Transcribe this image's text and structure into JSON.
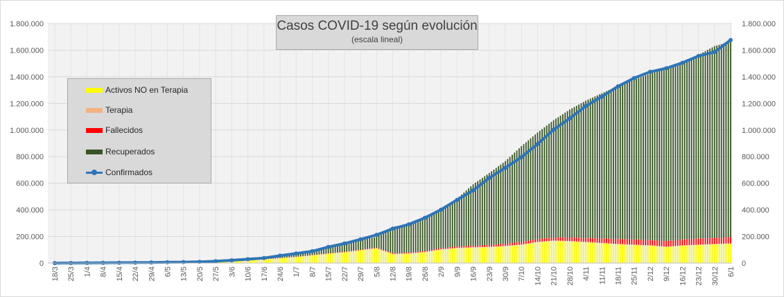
{
  "chart_data": {
    "type": "area",
    "title": "Casos COVID-19 según evolución",
    "subtitle": "(escala lineal)",
    "y_ticks": [
      "1.800.000",
      "1.600.000",
      "1.400.000",
      "1.200.000",
      "1.000.000",
      "800.000",
      "600.000",
      "400.000",
      "200.000",
      "0"
    ],
    "ylim": [
      0,
      1800000
    ],
    "grid": true,
    "legend_position": "left",
    "x_dates": [
      "18/3",
      "25/3",
      "1/4",
      "8/4",
      "15/4",
      "22/4",
      "29/4",
      "6/5",
      "13/5",
      "20/5",
      "27/5",
      "3/6",
      "10/6",
      "17/6",
      "24/6",
      "1/7",
      "8/7",
      "15/7",
      "22/7",
      "29/7",
      "5/8",
      "12/8",
      "19/8",
      "26/8",
      "2/9",
      "9/9",
      "16/9",
      "23/9",
      "30/9",
      "7/10",
      "14/10",
      "21/10",
      "28/10",
      "4/11",
      "11/11",
      "18/11",
      "25/11",
      "2/12",
      "9/12",
      "16/12",
      "23/12",
      "30/12",
      "6/1"
    ],
    "series": [
      {
        "name": "Activos NO en Terapia",
        "color": "#ffff00",
        "values": [
          200,
          1100,
          1300,
          1300,
          1800,
          2200,
          2300,
          2900,
          3900,
          6600,
          9900,
          13500,
          19000,
          27000,
          36000,
          45000,
          57000,
          70000,
          80000,
          95000,
          110000,
          66000,
          70000,
          80000,
          100000,
          110000,
          115000,
          118000,
          125000,
          135000,
          155000,
          165000,
          162000,
          155000,
          148000,
          140000,
          135000,
          130000,
          120000,
          130000,
          135000,
          140000,
          145000
        ]
      },
      {
        "name": "Terapia",
        "color": "#f4b183",
        "values": [
          50,
          150,
          200,
          250,
          250,
          250,
          250,
          300,
          350,
          400,
          450,
          550,
          750,
          950,
          1100,
          1300,
          1700,
          2000,
          2300,
          2600,
          2900,
          3300,
          3600,
          3900,
          4300,
          4700,
          4900,
          5000,
          5000,
          4900,
          4700,
          4500,
          4300,
          4200,
          4000,
          3800,
          3600,
          3500,
          3400,
          3300,
          3300,
          3300,
          3400
        ]
      },
      {
        "name": "Fallecidos",
        "color": "#ff0000",
        "values": [
          2,
          20,
          30,
          80,
          140,
          200,
          250,
          310,
          380,
          420,
          540,
          650,
          1000,
          1300,
          1500,
          1700,
          2100,
          2700,
          3300,
          3800,
          4300,
          5000,
          5900,
          6700,
          7800,
          9900,
          12000,
          14000,
          16000,
          19000,
          21000,
          24000,
          27000,
          31000,
          34000,
          37000,
          39000,
          40000,
          42000,
          44000,
          46000,
          47000,
          47000
        ]
      },
      {
        "name": "Recuperados",
        "color": "#375623",
        "values": [
          5,
          50,
          200,
          300,
          700,
          1100,
          1500,
          1700,
          2000,
          3700,
          5100,
          6000,
          9000,
          15000,
          20000,
          29000,
          35000,
          45000,
          55000,
          70000,
          80000,
          200000,
          210000,
          240000,
          300000,
          360000,
          460000,
          540000,
          620000,
          720000,
          800000,
          880000,
          960000,
          1030000,
          1090000,
          1150000,
          1200000,
          1250000,
          1300000,
          1330000,
          1380000,
          1440000,
          1470000
        ]
      },
      {
        "name": "Confirmados",
        "color": "#2e75b6",
        "values": [
          80,
          700,
          1300,
          2000,
          2900,
          3500,
          4300,
          6000,
          7000,
          9300,
          14000,
          21000,
          29000,
          38000,
          56000,
          72000,
          89000,
          121000,
          147000,
          178000,
          212000,
          258000,
          291000,
          340000,
          401000,
          475000,
          546000,
          640000,
          716000,
          796000,
          894000,
          1003000,
          1087000,
          1180000,
          1251000,
          1328000,
          1390000,
          1437000,
          1464000,
          1505000,
          1556000,
          1586000,
          1676000
        ]
      }
    ]
  }
}
